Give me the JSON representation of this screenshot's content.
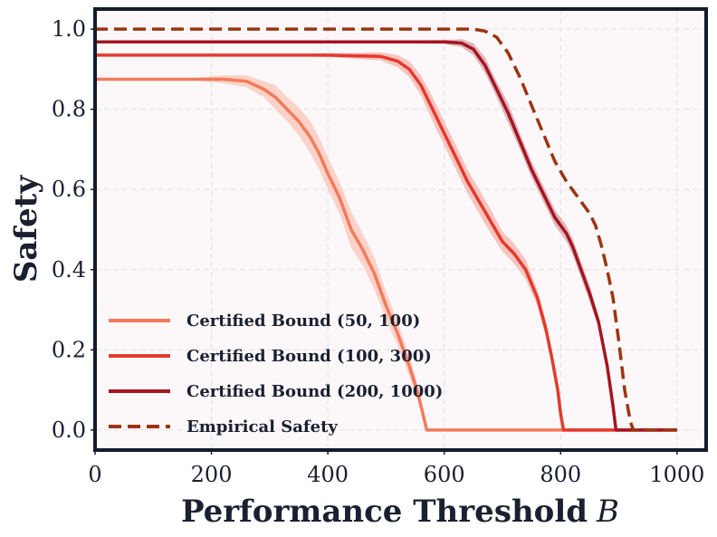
{
  "chart_data": {
    "type": "line",
    "xlabel": "Performance Threshold",
    "xlabel_var": "B",
    "ylabel": "Safety",
    "xlim": [
      0,
      1050
    ],
    "ylim": [
      -0.05,
      1.05
    ],
    "x_ticks": [
      0,
      200,
      400,
      600,
      800,
      1000
    ],
    "x_tick_labels": [
      "0",
      "200",
      "400",
      "600",
      "800",
      "1000"
    ],
    "y_ticks": [
      0.0,
      0.2,
      0.4,
      0.6,
      0.8,
      1.0
    ],
    "y_tick_labels": [
      "0.0",
      "0.2",
      "0.4",
      "0.6",
      "0.8",
      "1.0"
    ],
    "grid": true,
    "legend_position": "lower-left",
    "colors": {
      "background": "#fcf8fa",
      "frame": "#141b2b",
      "grid": "#e2dde2"
    },
    "series": [
      {
        "name": "Certified Bound (50, 100)",
        "color": "#f47a5a",
        "band_color": "#fcc6b8",
        "style": "solid",
        "x": [
          0,
          150,
          220,
          260,
          290,
          310,
          330,
          350,
          370,
          385,
          400,
          420,
          440,
          460,
          480,
          500,
          520,
          540,
          555,
          565,
          570,
          1000
        ],
        "y": [
          0.875,
          0.875,
          0.875,
          0.87,
          0.85,
          0.83,
          0.8,
          0.77,
          0.73,
          0.69,
          0.64,
          0.58,
          0.5,
          0.45,
          0.39,
          0.31,
          0.24,
          0.16,
          0.09,
          0.03,
          0.0,
          0.0
        ],
        "band": [
          0,
          0,
          0.01,
          0.015,
          0.02,
          0.03,
          0.03,
          0.035,
          0.04,
          0.04,
          0.04,
          0.04,
          0.045,
          0.04,
          0.04,
          0.035,
          0.03,
          0.025,
          0.02,
          0.01,
          0,
          0
        ]
      },
      {
        "name": "Certified Bound (100, 300)",
        "color": "#e33a2c",
        "band_color": "#f6b3ab",
        "style": "solid",
        "x": [
          0,
          300,
          400,
          490,
          520,
          540,
          560,
          580,
          600,
          620,
          640,
          660,
          680,
          700,
          720,
          740,
          760,
          775,
          785,
          795,
          800,
          805,
          1000
        ],
        "y": [
          0.935,
          0.935,
          0.935,
          0.932,
          0.92,
          0.9,
          0.86,
          0.8,
          0.74,
          0.68,
          0.62,
          0.57,
          0.52,
          0.47,
          0.44,
          0.4,
          0.33,
          0.25,
          0.18,
          0.1,
          0.04,
          0.0,
          0.0
        ],
        "band": [
          0,
          0,
          0.005,
          0.01,
          0.015,
          0.02,
          0.025,
          0.03,
          0.03,
          0.03,
          0.03,
          0.03,
          0.03,
          0.025,
          0.025,
          0.025,
          0.02,
          0.02,
          0.015,
          0.01,
          0.005,
          0,
          0
        ]
      },
      {
        "name": "Certified Bound (200, 1000)",
        "color": "#a5151f",
        "band_color": "#d7a3aa",
        "style": "solid",
        "x": [
          0,
          400,
          600,
          630,
          650,
          670,
          690,
          710,
          730,
          750,
          770,
          790,
          810,
          820,
          835,
          850,
          865,
          880,
          890,
          895,
          1000
        ],
        "y": [
          0.968,
          0.968,
          0.968,
          0.965,
          0.95,
          0.91,
          0.85,
          0.79,
          0.72,
          0.65,
          0.59,
          0.53,
          0.49,
          0.46,
          0.4,
          0.34,
          0.27,
          0.16,
          0.06,
          0.0,
          0.0
        ],
        "band": [
          0,
          0,
          0.005,
          0.01,
          0.015,
          0.02,
          0.02,
          0.025,
          0.02,
          0.02,
          0.02,
          0.02,
          0.02,
          0.02,
          0.02,
          0.02,
          0.015,
          0.01,
          0.005,
          0,
          0
        ]
      },
      {
        "name": "Empirical Safety",
        "color": "#9c3412",
        "style": "dashed",
        "x": [
          0,
          500,
          650,
          670,
          690,
          710,
          730,
          750,
          770,
          790,
          810,
          830,
          850,
          860,
          870,
          880,
          890,
          900,
          910,
          920,
          925,
          1000
        ],
        "y": [
          1.0,
          1.0,
          1.0,
          0.995,
          0.98,
          0.94,
          0.88,
          0.81,
          0.74,
          0.67,
          0.62,
          0.58,
          0.54,
          0.51,
          0.46,
          0.4,
          0.33,
          0.22,
          0.1,
          0.02,
          0.0,
          0.0
        ]
      }
    ]
  }
}
